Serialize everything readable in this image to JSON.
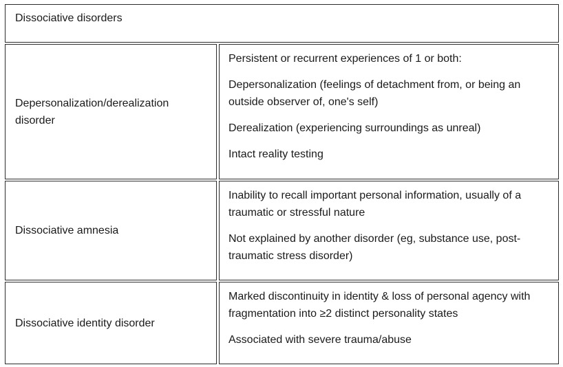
{
  "title": "Dissociative disorders",
  "rows": [
    {
      "disorder": "Depersonalization/derealization disorder",
      "criteria": [
        "Persistent or recurrent experiences of 1 or both:",
        "Depersonalization (feelings of detachment from, or being an outside observer of, one's self)",
        "Derealization (experiencing surroundings as unreal)",
        "Intact reality testing"
      ]
    },
    {
      "disorder": "Dissociative amnesia",
      "criteria": [
        "Inability to recall important personal information, usually of a traumatic or stressful nature",
        "Not explained by another disorder (eg, substance use, post-traumatic stress disorder)"
      ]
    },
    {
      "disorder": "Dissociative identity disorder",
      "criteria": [
        "Marked discontinuity in identity & loss of personal agency with fragmentation into ≥2 distinct personality states",
        "Associated with severe trauma/abuse"
      ]
    }
  ]
}
